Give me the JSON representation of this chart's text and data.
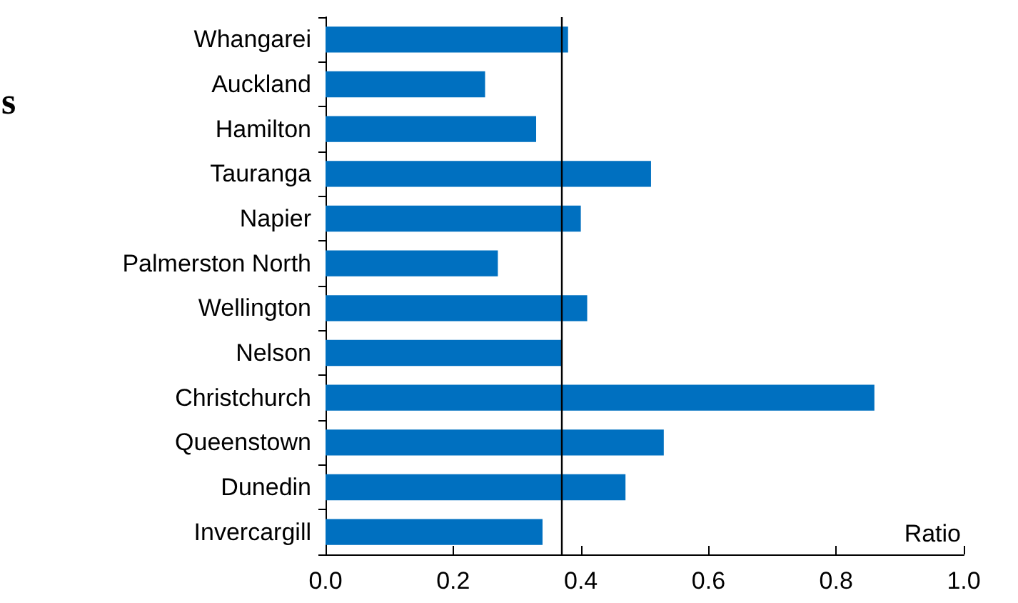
{
  "chart_data": {
    "type": "bar",
    "orientation": "horizontal",
    "xlabel": "Ratio",
    "categories": [
      "Whangarei",
      "Auckland",
      "Hamilton",
      "Tauranga",
      "Napier",
      "Palmerston North",
      "Wellington",
      "Nelson",
      "Christchurch",
      "Queenstown",
      "Dunedin",
      "Invercargill"
    ],
    "values": [
      0.38,
      0.25,
      0.33,
      0.51,
      0.4,
      0.27,
      0.41,
      0.37,
      0.86,
      0.53,
      0.47,
      0.34
    ],
    "color": "#0070c0",
    "xlim": [
      0,
      1
    ],
    "xticks": [
      {
        "value": 0,
        "label": "0.0"
      },
      {
        "value": 0.2,
        "label": "0.2"
      },
      {
        "value": 0.4,
        "label": "0.4"
      },
      {
        "value": 0.6,
        "label": "0.6"
      },
      {
        "value": 0.8,
        "label": "0.8"
      },
      {
        "value": 1,
        "label": "1.0"
      }
    ],
    "ref_lines": [
      {
        "axis": "x",
        "value": 0.37,
        "color": "#000000"
      }
    ],
    "annotations": [
      "s"
    ],
    "grid": false
  }
}
